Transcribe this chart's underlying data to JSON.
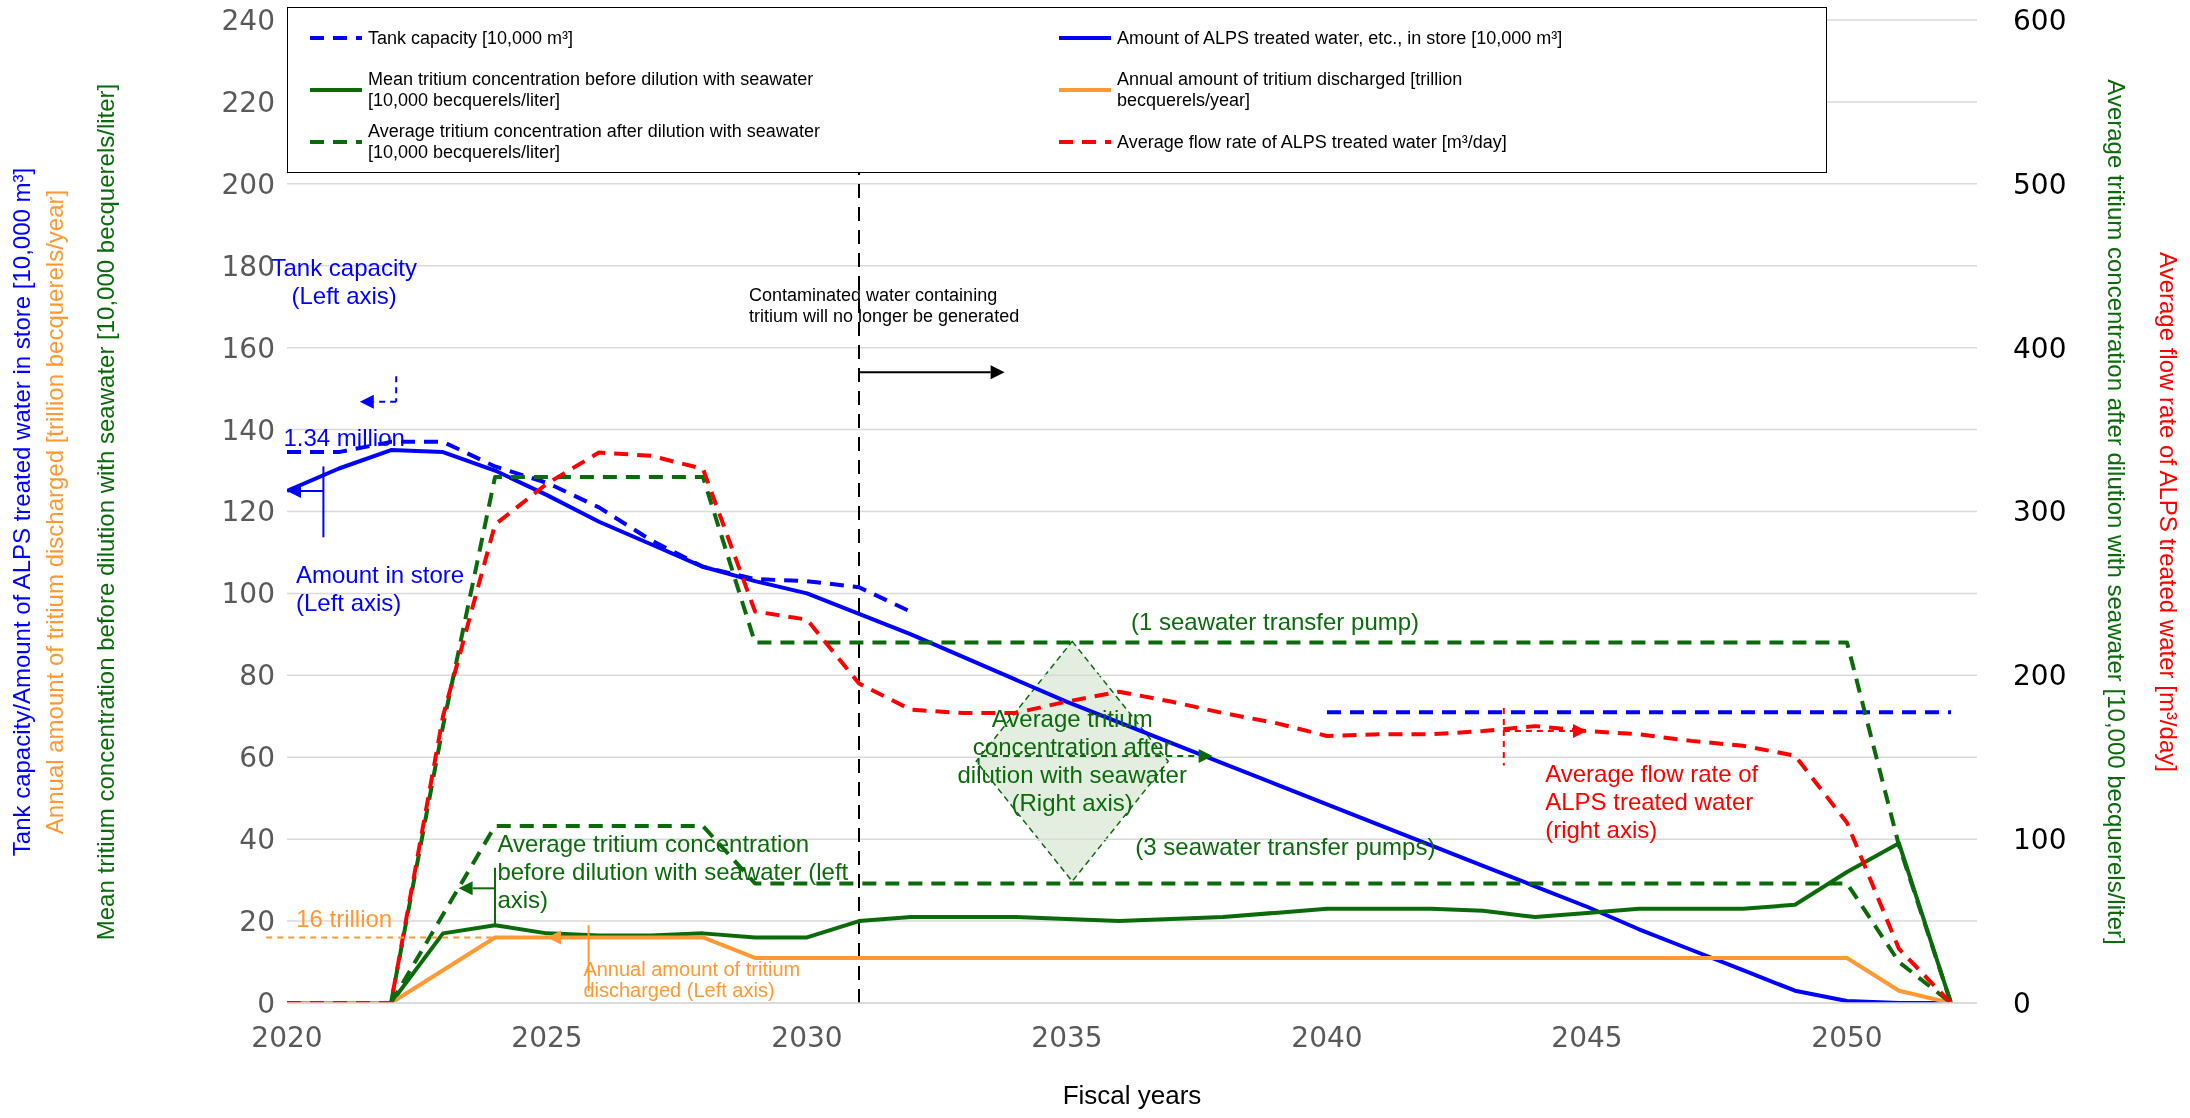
{
  "chart_data": {
    "type": "line",
    "xlabel": "Fiscal years",
    "y2label": "Average tritium concentration after dilution with seawater [10,000 becquerels/liter]",
    "x": [
      2020,
      2021,
      2022,
      2023,
      2024,
      2025,
      2026,
      2027,
      2028,
      2029,
      2030,
      2031,
      2032,
      2033,
      2034,
      2035,
      2036,
      2037,
      2038,
      2039,
      2040,
      2041,
      2042,
      2043,
      2044,
      2045,
      2046,
      2047,
      2048,
      2049,
      2050,
      2051,
      2052
    ],
    "xlim": [
      2020,
      2052.5
    ],
    "xticks": [
      2020,
      2025,
      2030,
      2035,
      2040,
      2045,
      2050
    ],
    "ylim": [
      0,
      240
    ],
    "yticks": [
      0,
      20,
      40,
      60,
      80,
      100,
      120,
      140,
      160,
      180,
      200,
      220,
      240
    ],
    "y2lim": [
      0,
      600
    ],
    "y2ticks": [
      0,
      100,
      200,
      300,
      400,
      500,
      600
    ],
    "grid": "y",
    "legend": "top",
    "marker": "none",
    "series": [
      {
        "name": "Tank capacity [10,000 m³]",
        "color": "#0000ff",
        "line_style": "dashed",
        "values": [
          134.5,
          134.5,
          137,
          137,
          131,
          127,
          121,
          113,
          106.5,
          103.5,
          103,
          101.5,
          95.5,
          null,
          null,
          null,
          null,
          null,
          null,
          null,
          71,
          71,
          71,
          71,
          71,
          71,
          71,
          71,
          71,
          71,
          71,
          71,
          71
        ]
      },
      {
        "name": "Amount of ALPS treated water, etc., in store [10,000 m³]",
        "color": "#0000ff",
        "line_style": "solid",
        "values": [
          125,
          130.5,
          135,
          134.5,
          130,
          124,
          117.5,
          112,
          106.5,
          103,
          100,
          95,
          90,
          84.5,
          79,
          73.5,
          68.5,
          63.5,
          58.5,
          53.5,
          48.5,
          43.5,
          38.5,
          33.5,
          28.5,
          23.5,
          18,
          13,
          8,
          3,
          0.5,
          0,
          0
        ]
      },
      {
        "name": "Mean tritium concentration before dilution with seawater [10,000 becquerels/liter]",
        "color": "#0b6b0b",
        "line_style": "solid",
        "values": [
          0,
          0,
          0,
          17,
          19,
          17,
          16.5,
          16.5,
          17,
          16,
          16,
          20,
          21,
          21,
          21,
          20.5,
          20,
          20.5,
          21,
          22,
          23,
          23,
          23,
          22.5,
          21,
          22,
          23,
          23,
          23,
          24,
          32,
          39,
          0
        ]
      },
      {
        "name": "Annual amount of tritium discharged [trillion becquerels/year]",
        "color": "#ff9933",
        "line_style": "solid",
        "values": [
          0,
          0,
          0,
          8,
          16,
          16,
          16,
          16,
          16,
          11,
          11,
          11,
          11,
          11,
          11,
          11,
          11,
          11,
          11,
          11,
          11,
          11,
          11,
          11,
          11,
          11,
          11,
          11,
          11,
          11,
          11,
          3,
          0
        ]
      },
      {
        "name": "Average tritium concentration after dilution with seawater [10,000 becquerels/liter]",
        "color": "#0b6b0b",
        "line_style": "dashed",
        "axis": "y2",
        "values": [
          null,
          null,
          0,
          169,
          321,
          321,
          321,
          321,
          321,
          220,
          220,
          220,
          220,
          220,
          220,
          220,
          220,
          220,
          220,
          220,
          220,
          220,
          220,
          220,
          220,
          220,
          220,
          220,
          220,
          220,
          220,
          96,
          0
        ]
      },
      {
        "color": "#0b6b0b",
        "line_style": "dashed",
        "axis": "y2",
        "values": [
          null,
          null,
          0,
          54,
          108,
          108,
          108,
          108,
          108,
          73,
          73,
          73,
          73,
          73,
          73,
          73,
          73,
          73,
          73,
          73,
          73,
          73,
          73,
          73,
          73,
          73,
          73,
          73,
          73,
          73,
          73,
          25,
          0
        ]
      },
      {
        "name": "Average flow rate of ALPS treated water [m³/day]",
        "color": "#ff0000",
        "line_style": "dashed",
        "axis": "y2",
        "values": [
          0,
          0,
          0,
          175,
          292,
          317,
          336,
          334,
          326,
          239,
          234,
          195,
          179,
          177,
          177,
          184,
          190,
          184,
          177,
          171,
          163,
          164,
          164,
          166,
          169,
          166,
          164,
          160,
          157,
          151,
          110,
          33,
          0
        ]
      }
    ],
    "ref_lines": [
      {
        "axis": "x",
        "value": 2031,
        "label": "Contaminated water containing tritium will no longer be generated",
        "color": "#000000",
        "line_style": "dashed"
      }
    ],
    "annotations": [
      "Tank capacity (Left axis)",
      "1.34 million",
      {
        "text": "Amount in store (Left axis)",
        "x": 2020,
        "y": 125
      },
      {
        "text": "Average tritium concentration before dilution with seawater (left axis)",
        "x": 2023.3,
        "y": 28
      },
      {
        "text": "16 trillion",
        "x": 2024.3,
        "y": 16
      },
      {
        "text": "Annual amount of tritium discharged (Left axis)",
        "x": 2025,
        "y": 16
      },
      "(1 seawater transfer pump)",
      {
        "text": "Average tritium concentration after dilution with seawater (Right axis)",
        "x": 2037.8,
        "y": 60.3
      },
      "(3 seawater transfer pumps)",
      {
        "text": "Average flow rate of ALPS treated water (right axis)",
        "x": 2045,
        "y": 66.4
      },
      "Tank capacity/Amount of ALPS treated water in store [10,000 m³]",
      "Annual amount of tritium discharged [trillion becquerels/year]",
      "Mean tritium concentration before dilution with seawater [10,000 becquerels/liter]",
      "Average flow rate of ALPS treated water [m³/day]"
    ]
  }
}
